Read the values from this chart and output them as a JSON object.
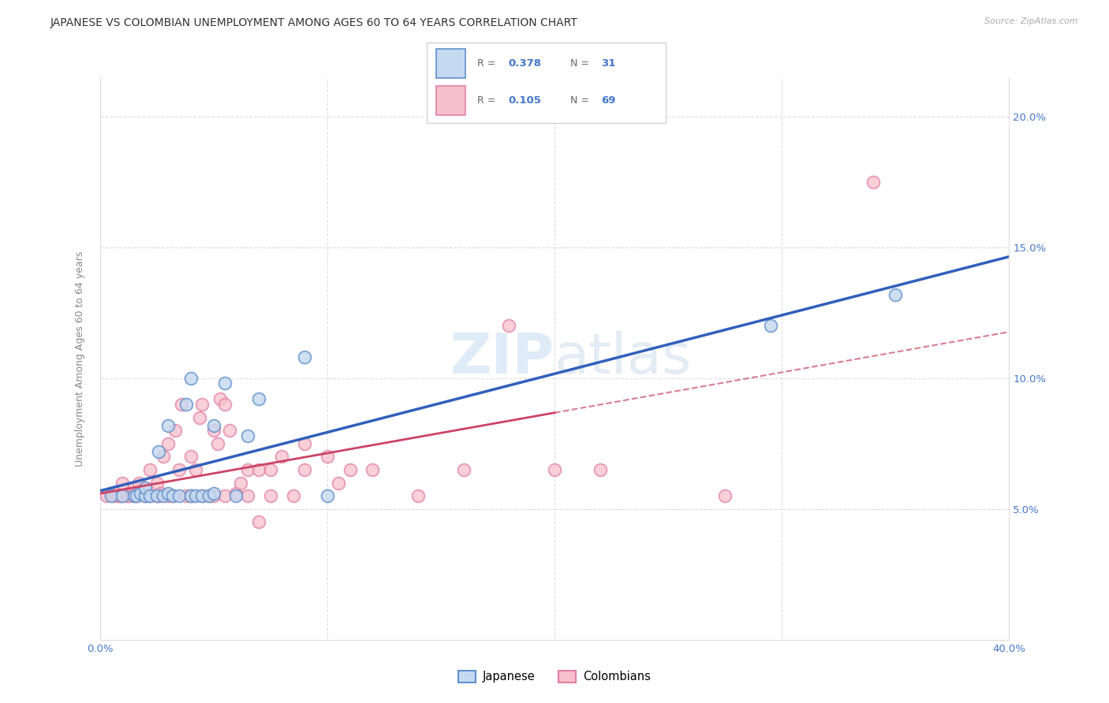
{
  "title": "JAPANESE VS COLOMBIAN UNEMPLOYMENT AMONG AGES 60 TO 64 YEARS CORRELATION CHART",
  "source": "Source: ZipAtlas.com",
  "ylabel": "Unemployment Among Ages 60 to 64 years",
  "xlim": [
    0.0,
    0.4
  ],
  "ylim": [
    0.0,
    0.215
  ],
  "xticks": [
    0.0,
    0.1,
    0.2,
    0.3,
    0.4
  ],
  "xticklabels": [
    "0.0%",
    "",
    "",
    "",
    "40.0%"
  ],
  "yticks": [
    0.0,
    0.05,
    0.1,
    0.15,
    0.2
  ],
  "yticklabels": [
    "",
    "",
    "",
    "",
    ""
  ],
  "right_yticks": [
    0.05,
    0.1,
    0.15,
    0.2
  ],
  "right_yticklabels": [
    "5.0%",
    "10.0%",
    "15.0%",
    "20.0%"
  ],
  "legend_japanese": "Japanese",
  "legend_colombians": "Colombians",
  "R_japanese": 0.378,
  "N_japanese": 31,
  "R_colombians": 0.105,
  "N_colombians": 69,
  "japanese_fill": "#c5d9f0",
  "colombian_fill": "#f8c0cc",
  "japanese_edge": "#6090cc",
  "colombian_edge": "#e080a0",
  "japanese_line": "#3060bb",
  "colombian_line": "#cc4466",
  "tick_color_blue": "#4477cc",
  "tick_color_gray": "#888888",
  "title_fontsize": 10,
  "source_fontsize": 8,
  "axis_label_fontsize": 9,
  "tick_fontsize": 9.5,
  "grid_color": "#dddddd",
  "watermark_zip": "ZIP",
  "watermark_atlas": "atlas",
  "japanese_x": [
    0.005,
    0.01,
    0.015,
    0.016,
    0.018,
    0.02,
    0.02,
    0.022,
    0.025,
    0.026,
    0.028,
    0.03,
    0.03,
    0.032,
    0.035,
    0.038,
    0.04,
    0.04,
    0.042,
    0.045,
    0.048,
    0.05,
    0.05,
    0.055,
    0.06,
    0.065,
    0.07,
    0.09,
    0.1,
    0.295,
    0.35
  ],
  "japanese_y": [
    0.055,
    0.055,
    0.055,
    0.055,
    0.056,
    0.055,
    0.058,
    0.055,
    0.055,
    0.072,
    0.055,
    0.056,
    0.082,
    0.055,
    0.055,
    0.09,
    0.055,
    0.1,
    0.055,
    0.055,
    0.055,
    0.056,
    0.082,
    0.098,
    0.055,
    0.078,
    0.092,
    0.108,
    0.055,
    0.12,
    0.132
  ],
  "colombian_x": [
    0.003,
    0.005,
    0.006,
    0.007,
    0.008,
    0.009,
    0.01,
    0.01,
    0.012,
    0.013,
    0.014,
    0.015,
    0.015,
    0.016,
    0.017,
    0.018,
    0.02,
    0.02,
    0.022,
    0.022,
    0.025,
    0.025,
    0.026,
    0.027,
    0.028,
    0.03,
    0.03,
    0.032,
    0.033,
    0.035,
    0.036,
    0.038,
    0.04,
    0.04,
    0.042,
    0.044,
    0.045,
    0.045,
    0.048,
    0.05,
    0.05,
    0.052,
    0.053,
    0.055,
    0.055,
    0.057,
    0.06,
    0.062,
    0.065,
    0.065,
    0.07,
    0.07,
    0.075,
    0.075,
    0.08,
    0.085,
    0.09,
    0.09,
    0.1,
    0.105,
    0.11,
    0.12,
    0.14,
    0.16,
    0.18,
    0.2,
    0.22,
    0.275,
    0.34
  ],
  "colombian_y": [
    0.055,
    0.056,
    0.055,
    0.056,
    0.055,
    0.055,
    0.055,
    0.06,
    0.055,
    0.055,
    0.056,
    0.055,
    0.058,
    0.055,
    0.06,
    0.056,
    0.055,
    0.058,
    0.055,
    0.065,
    0.055,
    0.06,
    0.055,
    0.056,
    0.07,
    0.055,
    0.075,
    0.055,
    0.08,
    0.065,
    0.09,
    0.055,
    0.07,
    0.055,
    0.065,
    0.085,
    0.09,
    0.055,
    0.055,
    0.08,
    0.055,
    0.075,
    0.092,
    0.09,
    0.055,
    0.08,
    0.056,
    0.06,
    0.065,
    0.055,
    0.045,
    0.065,
    0.065,
    0.055,
    0.07,
    0.055,
    0.065,
    0.075,
    0.07,
    0.06,
    0.065,
    0.065,
    0.055,
    0.065,
    0.12,
    0.065,
    0.065,
    0.055,
    0.175
  ]
}
